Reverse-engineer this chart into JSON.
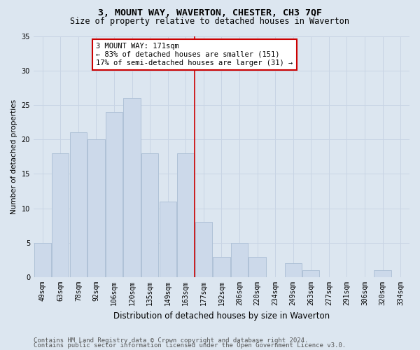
{
  "title": "3, MOUNT WAY, WAVERTON, CHESTER, CH3 7QF",
  "subtitle": "Size of property relative to detached houses in Waverton",
  "xlabel": "Distribution of detached houses by size in Waverton",
  "ylabel": "Number of detached properties",
  "categories": [
    "49sqm",
    "63sqm",
    "78sqm",
    "92sqm",
    "106sqm",
    "120sqm",
    "135sqm",
    "149sqm",
    "163sqm",
    "177sqm",
    "192sqm",
    "206sqm",
    "220sqm",
    "234sqm",
    "249sqm",
    "263sqm",
    "277sqm",
    "291sqm",
    "306sqm",
    "320sqm",
    "334sqm"
  ],
  "values": [
    5,
    18,
    21,
    20,
    24,
    26,
    18,
    11,
    18,
    8,
    3,
    5,
    3,
    0,
    2,
    1,
    0,
    0,
    0,
    1,
    0
  ],
  "bar_color": "#ccd9ea",
  "bar_edge_color": "#aabdd4",
  "vline_x_index": 9,
  "vline_color": "#cc0000",
  "annotation_text": "3 MOUNT WAY: 171sqm\n← 83% of detached houses are smaller (151)\n17% of semi-detached houses are larger (31) →",
  "annotation_box_color": "#ffffff",
  "annotation_box_edge_color": "#cc0000",
  "ylim": [
    0,
    35
  ],
  "yticks": [
    0,
    5,
    10,
    15,
    20,
    25,
    30,
    35
  ],
  "grid_color": "#c8d4e4",
  "bg_color": "#dce6f0",
  "footer_line1": "Contains HM Land Registry data © Crown copyright and database right 2024.",
  "footer_line2": "Contains public sector information licensed under the Open Government Licence v3.0.",
  "title_fontsize": 9.5,
  "subtitle_fontsize": 8.5,
  "xlabel_fontsize": 8.5,
  "ylabel_fontsize": 7.5,
  "tick_fontsize": 7,
  "annot_fontsize": 7.5,
  "footer_fontsize": 6.5
}
